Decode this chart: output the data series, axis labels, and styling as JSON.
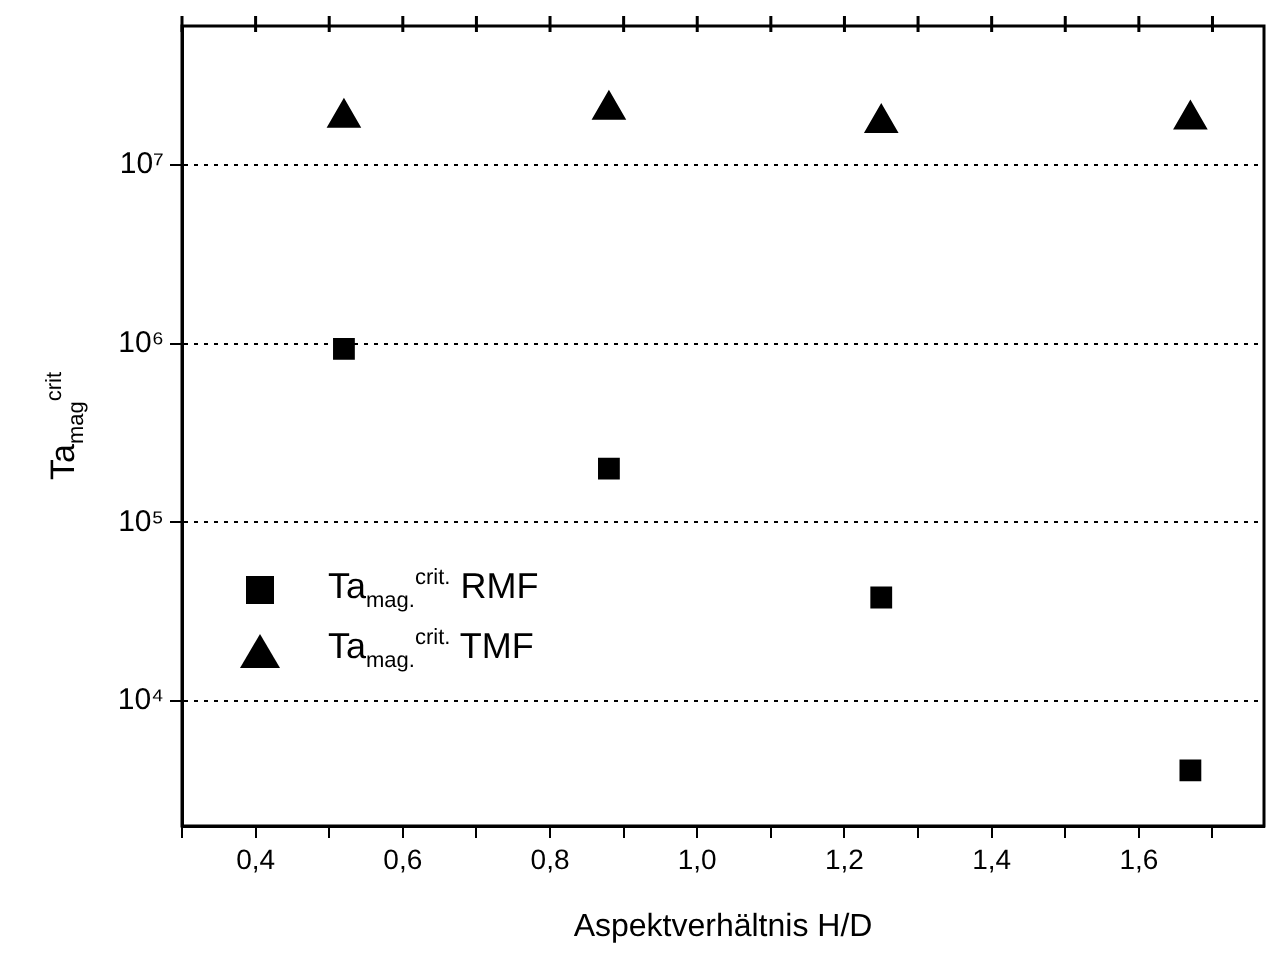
{
  "chart_data": {
    "type": "scatter",
    "xlabel": "Aspektverhältnis H/D",
    "ylabel": "Ta$_{mag}$$^{crit}$",
    "x": [
      0.52,
      0.88,
      1.25,
      1.67
    ],
    "series": [
      {
        "name": "Ta$_{mag.}$$^{crit.}$ RMF",
        "color": "#000000",
        "marker": "square",
        "values": [
          935000,
          200000,
          38000,
          4100
        ]
      },
      {
        "name": "Ta$_{mag.}$$^{crit.}$ TMF",
        "color": "#000000",
        "marker": "triangle",
        "values": [
          18400000,
          20400000,
          17200000,
          18000000
        ]
      }
    ],
    "xlim": [
      0.3,
      1.77
    ],
    "xticks": [
      {
        "value": 0.3,
        "label": null
      },
      {
        "value": 0.4,
        "label": "0,4"
      },
      {
        "value": 0.5,
        "label": null
      },
      {
        "value": 0.6,
        "label": "0,6"
      },
      {
        "value": 0.7,
        "label": null
      },
      {
        "value": 0.8,
        "label": "0,8"
      },
      {
        "value": 0.9,
        "label": null
      },
      {
        "value": 1.0,
        "label": "1,0"
      },
      {
        "value": 1.1,
        "label": null
      },
      {
        "value": 1.2,
        "label": "1,2"
      },
      {
        "value": 1.3,
        "label": null
      },
      {
        "value": 1.4,
        "label": "1,4"
      },
      {
        "value": 1.5,
        "label": null
      },
      {
        "value": 1.6,
        "label": "1,6"
      },
      {
        "value": 1.7,
        "label": null
      }
    ],
    "ylim": [
      2000,
      60000000
    ],
    "yticks": [
      {
        "value": 10000,
        "label": "10⁴"
      },
      {
        "value": 100000,
        "label": "10⁵"
      },
      {
        "value": 1000000,
        "label": "10⁶"
      },
      {
        "value": 10000000,
        "label": "10⁷"
      }
    ],
    "log": "y",
    "grid": "y",
    "legend": "left"
  }
}
